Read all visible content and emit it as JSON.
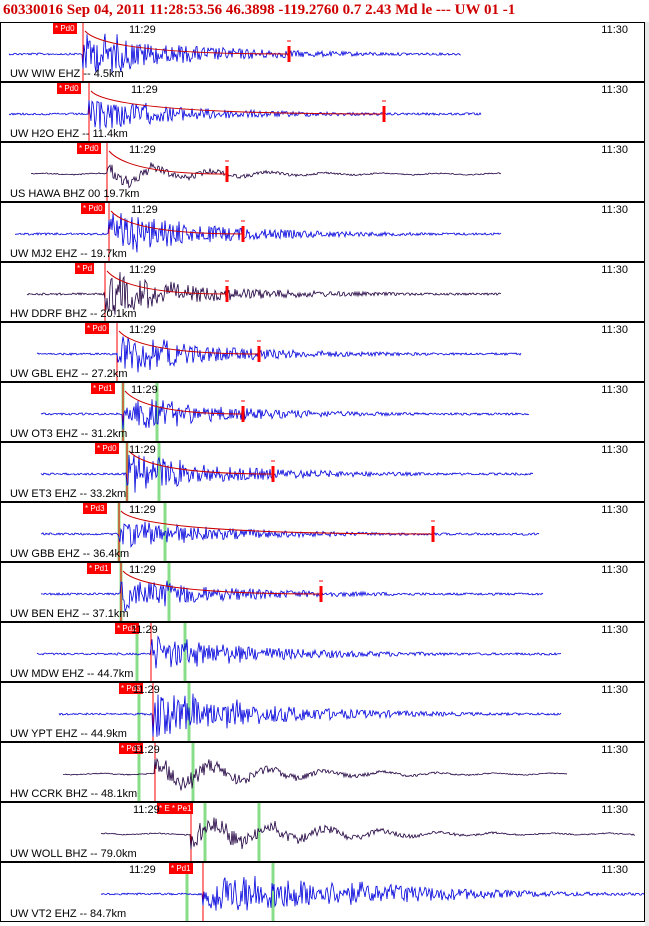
{
  "header": {
    "title": "60330016 Sep 04, 2011 11:28:53.56   46.3898 -119.2760  0.7 2.43 Md le --- UW 01  -1"
  },
  "colors": {
    "trace_blue": "#0000dd",
    "trace_dark": "#200040",
    "pick_red": "#ff0000",
    "header_red": "#d00000",
    "green_marker": "#88dd88"
  },
  "traces": [
    {
      "label": "UW WIW EHZ -- 4.5km",
      "pick": "* Pd0",
      "time_left": "11:29",
      "time_right": "11:30",
      "color": "blue"
    },
    {
      "label": "UW H2O EHZ -- 11.4km",
      "pick": "* Pd0",
      "time_left": "11:29",
      "time_right": "11:30",
      "color": "blue"
    },
    {
      "label": "US HAWA BHZ 00 19.7km",
      "pick": "* Pd0",
      "time_left": "11:29",
      "time_right": "11:30",
      "color": "dark"
    },
    {
      "label": "UW MJ2 EHZ -- 19.7km",
      "pick": "* Pd0",
      "time_left": "11:29",
      "time_right": "11:30",
      "color": "blue"
    },
    {
      "label": "HW DDRF BHZ -- 20.1km",
      "pick": "* Pd",
      "time_left": "11:29",
      "time_right": "11:30",
      "color": "dark"
    },
    {
      "label": "UW GBL EHZ -- 27.2km",
      "pick": "* Pd0",
      "time_left": "11:29",
      "time_right": "11:30",
      "color": "blue"
    },
    {
      "label": "UW OT3 EHZ -- 31.2km",
      "pick": "* Pd1",
      "time_left": "11:29",
      "time_right": "11:30",
      "color": "blue"
    },
    {
      "label": "UW ET3 EHZ -- 33.2km",
      "pick": "* Pd0",
      "time_left": "11:29",
      "time_right": "11:30",
      "color": "blue"
    },
    {
      "label": "UW GBB EHZ -- 36.4km",
      "pick": "* Pd3",
      "time_left": "11:29",
      "time_right": "11:30",
      "color": "blue"
    },
    {
      "label": "UW BEN EHZ -- 37.1km",
      "pick": "* Pd1",
      "time_left": "11:29",
      "time_right": "11:30",
      "color": "blue"
    },
    {
      "label": "UW MDW EHZ -- 44.7km",
      "pick": "* Pd2",
      "time_left": "11:29",
      "time_right": "11:30",
      "color": "blue"
    },
    {
      "label": "UW YPT EHZ -- 44.9km",
      "pick": "* Pd3",
      "time_left": "11:29",
      "time_right": "11:30",
      "color": "blue"
    },
    {
      "label": "HW CCRK BHZ -- 48.1km",
      "pick": "* Pd3",
      "time_left": "11:29",
      "time_right": "11:30",
      "color": "dark"
    },
    {
      "label": "UW WOLL BHZ -- 79.0km",
      "pick": "* E * Pe1",
      "time_left": "11:29",
      "time_right": "11:30",
      "color": "dark"
    },
    {
      "label": "UW VT2 EHZ -- 84.7km",
      "pick": "* Pd1",
      "time_left": "11:29",
      "time_right": "11:30",
      "color": "blue"
    }
  ]
}
